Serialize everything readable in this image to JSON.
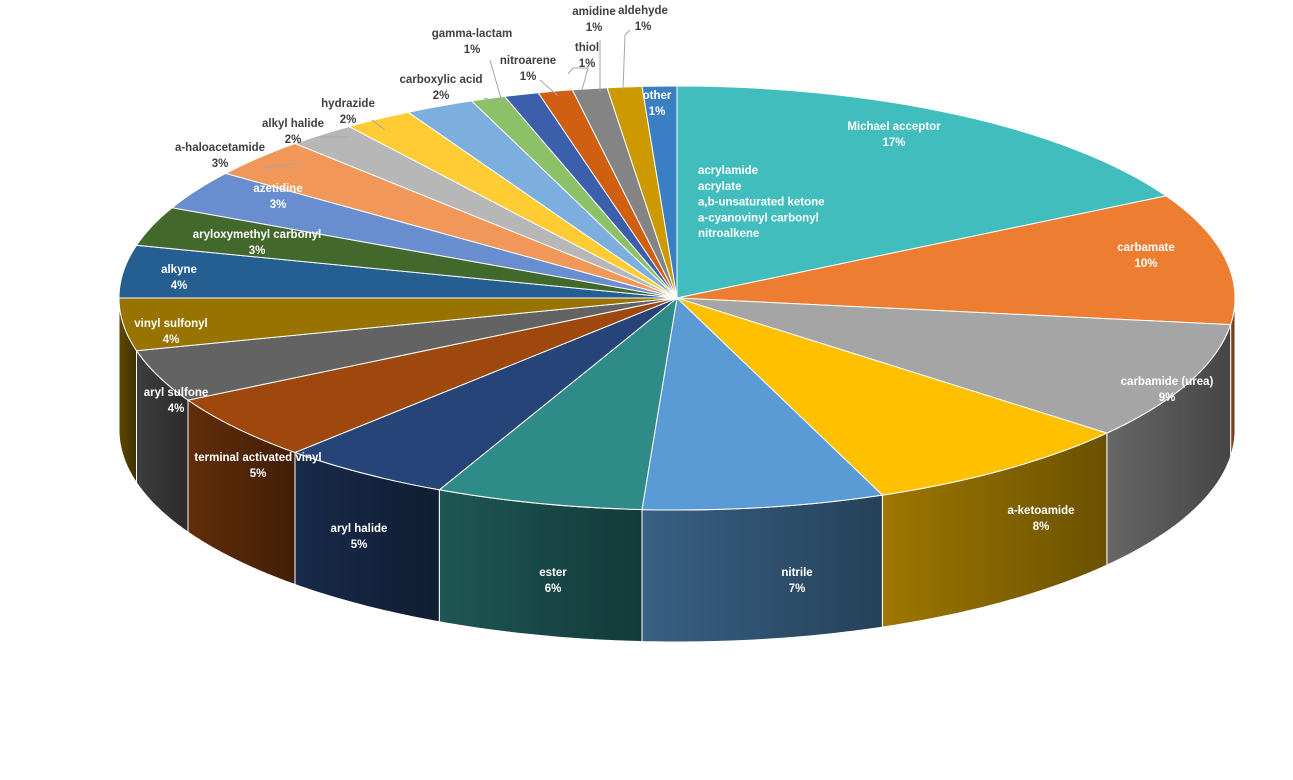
{
  "chart_data": {
    "type": "pie",
    "title": "",
    "slices": [
      {
        "label": "Michael acceptor",
        "pct_text": "17%",
        "value": 17,
        "color": "#41bdbe",
        "label_pos": "inside",
        "detail": [
          "acrylamide",
          "acrylate",
          "a,b-unsaturated ketone",
          "a-cyanovinyl carbonyl",
          "nitroalkene"
        ]
      },
      {
        "label": "carbamate",
        "pct_text": "10%",
        "value": 10,
        "color": "#ed7d31",
        "label_pos": "inside"
      },
      {
        "label": "carbamide (urea)",
        "pct_text": "9%",
        "value": 9,
        "color": "#a5a5a5",
        "label_pos": "inside"
      },
      {
        "label": "a-ketoamide",
        "pct_text": "8%",
        "value": 8,
        "color": "#ffc000",
        "label_pos": "inside"
      },
      {
        "label": "nitrile",
        "pct_text": "7%",
        "value": 7,
        "color": "#5b9bd5",
        "label_pos": "inside"
      },
      {
        "label": "ester",
        "pct_text": "6%",
        "value": 6,
        "color": "#2e8b88",
        "label_pos": "inside"
      },
      {
        "label": "aryl halide",
        "pct_text": "5%",
        "value": 5,
        "color": "#264478",
        "label_pos": "inside"
      },
      {
        "label": "terminal activated vinyl",
        "pct_text": "5%",
        "value": 5,
        "color": "#9e480e",
        "label_pos": "inside"
      },
      {
        "label": "aryl sulfone",
        "pct_text": "4%",
        "value": 4,
        "color": "#636363",
        "label_pos": "inside"
      },
      {
        "label": "vinyl sulfonyl",
        "pct_text": "4%",
        "value": 4,
        "color": "#997300",
        "label_pos": "inside"
      },
      {
        "label": "alkyne",
        "pct_text": "4%",
        "value": 4,
        "color": "#255e91",
        "label_pos": "inside"
      },
      {
        "label": "aryloxymethyl carbonyl",
        "pct_text": "3%",
        "value": 3,
        "color": "#43682b",
        "label_pos": "inside"
      },
      {
        "label": "azetidine",
        "pct_text": "3%",
        "value": 3,
        "color": "#698ed0",
        "label_pos": "inside"
      },
      {
        "label": "a-haloacetamide",
        "pct_text": "3%",
        "value": 3,
        "color": "#f1975a",
        "label_pos": "outside"
      },
      {
        "label": "alkyl halide",
        "pct_text": "2%",
        "value": 2,
        "color": "#b7b7b7",
        "label_pos": "outside"
      },
      {
        "label": "hydrazide",
        "pct_text": "2%",
        "value": 2,
        "color": "#ffcd33",
        "label_pos": "outside"
      },
      {
        "label": "carboxylic acid",
        "pct_text": "2%",
        "value": 2,
        "color": "#7cafdd",
        "label_pos": "outside"
      },
      {
        "label": "gamma-lactam",
        "pct_text": "1%",
        "value": 1,
        "color": "#8cc168",
        "label_pos": "outside"
      },
      {
        "label": "nitroarene",
        "pct_text": "1%",
        "value": 1,
        "color": "#3c5fab",
        "label_pos": "outside"
      },
      {
        "label": "thiol",
        "pct_text": "1%",
        "value": 1,
        "color": "#d05f12",
        "label_pos": "outside"
      },
      {
        "label": "amidine",
        "pct_text": "1%",
        "value": 1,
        "color": "#848484",
        "label_pos": "outside"
      },
      {
        "label": "aldehyde",
        "pct_text": "1%",
        "value": 1,
        "color": "#cc9a00",
        "label_pos": "outside"
      },
      {
        "label": "other",
        "pct_text": "1%",
        "value": 1,
        "color": "#3a7fc4",
        "label_pos": "inside"
      }
    ],
    "legend": "none",
    "style": "3d-pie"
  }
}
